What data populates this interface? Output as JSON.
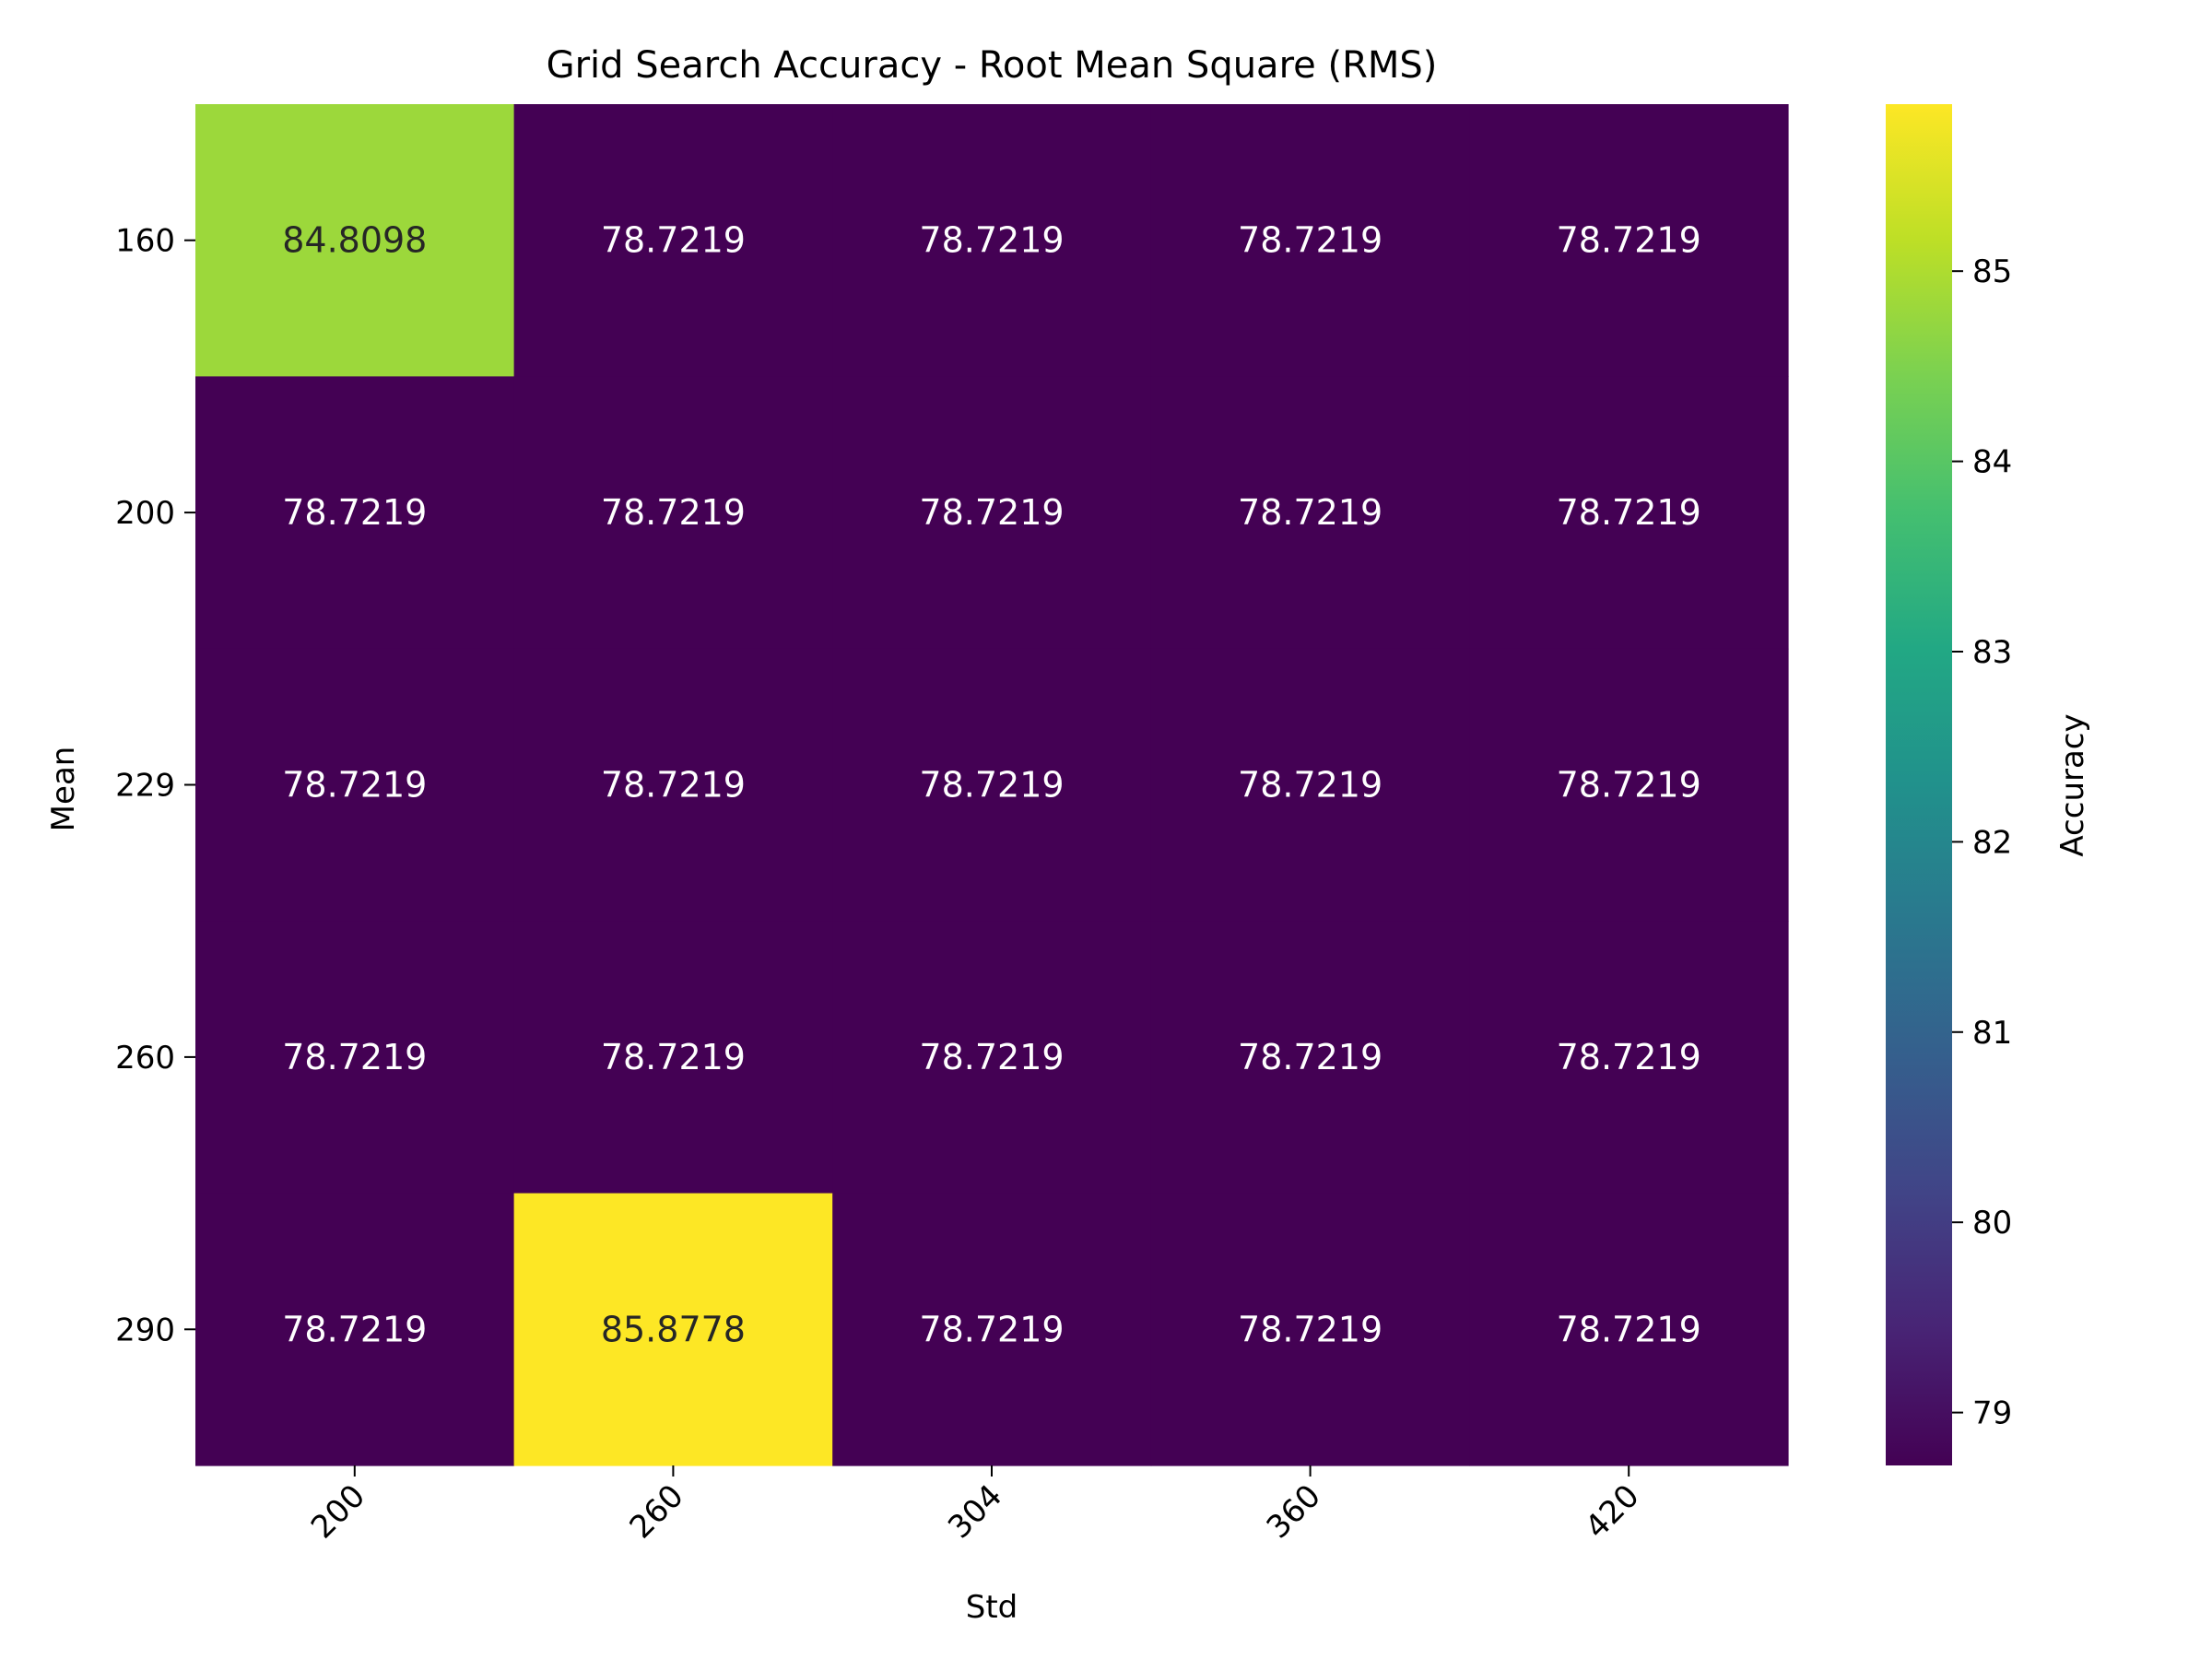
{
  "chart_data": {
    "type": "heatmap",
    "title": "Grid Search Accuracy - Root Mean Square (RMS)",
    "xlabel": "Std",
    "ylabel": "Mean",
    "x_categories": [
      "200",
      "260",
      "304",
      "360",
      "420"
    ],
    "y_categories": [
      "160",
      "200",
      "229",
      "260",
      "290"
    ],
    "values": [
      [
        84.8098,
        78.7219,
        78.7219,
        78.7219,
        78.7219
      ],
      [
        78.7219,
        78.7219,
        78.7219,
        78.7219,
        78.7219
      ],
      [
        78.7219,
        78.7219,
        78.7219,
        78.7219,
        78.7219
      ],
      [
        78.7219,
        78.7219,
        78.7219,
        78.7219,
        78.7219
      ],
      [
        78.7219,
        85.8778,
        78.7219,
        78.7219,
        78.7219
      ]
    ],
    "value_labels": [
      [
        "84.8098",
        "78.7219",
        "78.7219",
        "78.7219",
        "78.7219"
      ],
      [
        "78.7219",
        "78.7219",
        "78.7219",
        "78.7219",
        "78.7219"
      ],
      [
        "78.7219",
        "78.7219",
        "78.7219",
        "78.7219",
        "78.7219"
      ],
      [
        "78.7219",
        "78.7219",
        "78.7219",
        "78.7219",
        "78.7219"
      ],
      [
        "78.7219",
        "85.8778",
        "78.7219",
        "78.7219",
        "78.7219"
      ]
    ],
    "colormap": "viridis",
    "colorbar": {
      "label": "Accuracy",
      "min": 78.7219,
      "max": 85.8778,
      "ticks": [
        "79",
        "80",
        "81",
        "82",
        "83",
        "84",
        "85"
      ]
    },
    "grid": false,
    "legend": "none"
  }
}
